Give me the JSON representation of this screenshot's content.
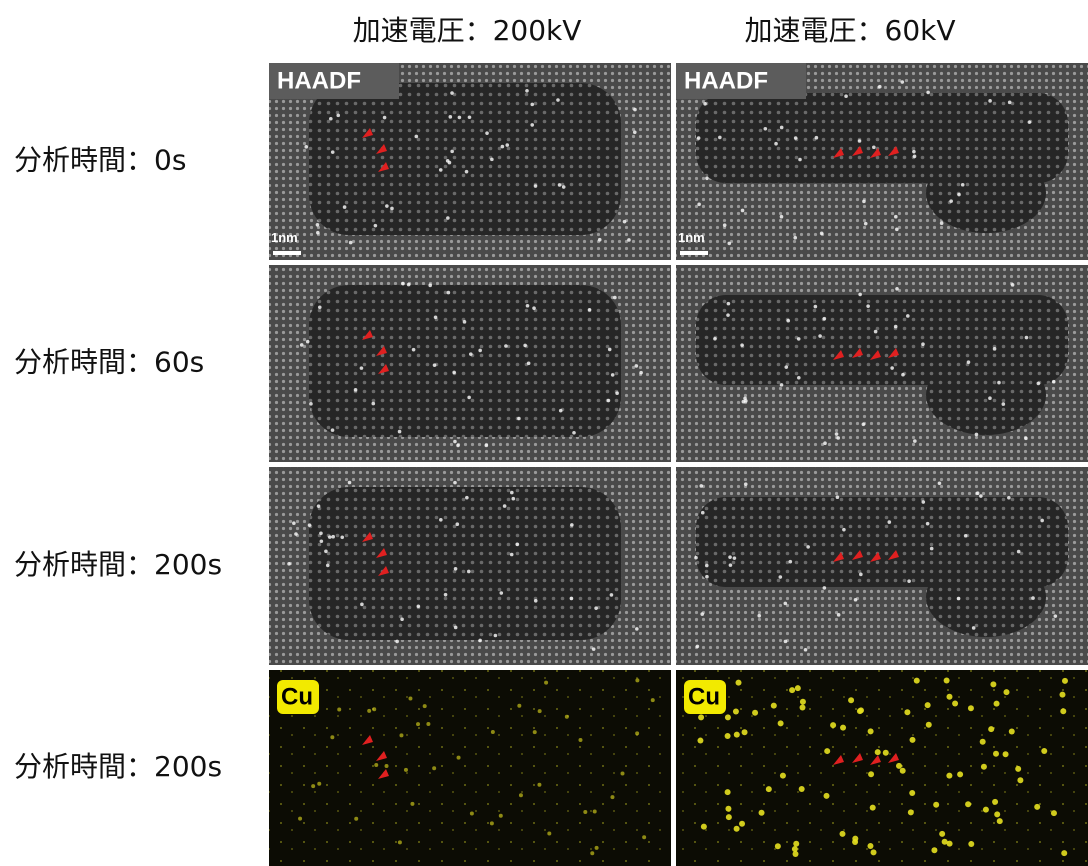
{
  "column_headers": [
    "加速電圧：200kV",
    "加速電圧：60kV"
  ],
  "rows": [
    {
      "label": "分析時間：0s",
      "badges": [
        "HAADF",
        "HAADF"
      ],
      "scale_bars": [
        "1nm",
        "1nm"
      ]
    },
    {
      "label": "分析時間：60s"
    },
    {
      "label": "分析時間：200s"
    },
    {
      "label": "分析時間：200s",
      "badges": [
        "Cu",
        "Cu"
      ]
    }
  ]
}
